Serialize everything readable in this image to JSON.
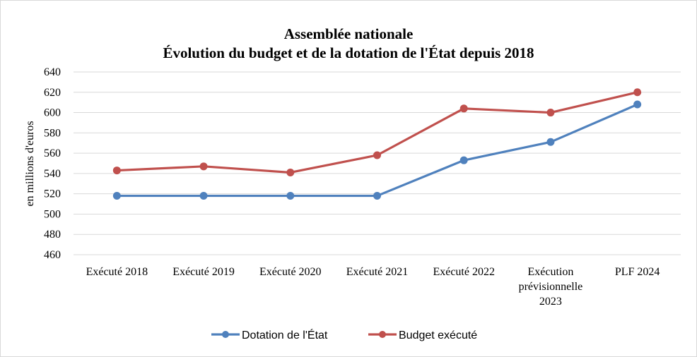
{
  "chart_data": {
    "type": "line",
    "title": [
      "Assemblée nationale",
      "Évolution du budget et de la dotation de l'État depuis 2018"
    ],
    "xlabel": "",
    "ylabel": "en millions d'euros",
    "ylim": [
      460,
      640
    ],
    "yticks": [
      460,
      480,
      500,
      520,
      540,
      560,
      580,
      600,
      620,
      640
    ],
    "grid": true,
    "legend_position": "bottom",
    "categories": [
      [
        "Exécuté 2018"
      ],
      [
        "Exécuté 2019"
      ],
      [
        "Exécuté 2020"
      ],
      [
        "Exécuté 2021"
      ],
      [
        "Exécuté 2022"
      ],
      [
        "Exécution",
        "prévisionnelle",
        "2023"
      ],
      [
        "PLF 2024"
      ]
    ],
    "series": [
      {
        "name": "Dotation de l'État",
        "color": "#4f81bd",
        "values": [
          518,
          518,
          518,
          518,
          553,
          571,
          608
        ]
      },
      {
        "name": "Budget exécuté",
        "color": "#c0504d",
        "values": [
          543,
          547,
          541,
          558,
          604,
          600,
          620
        ]
      }
    ]
  }
}
